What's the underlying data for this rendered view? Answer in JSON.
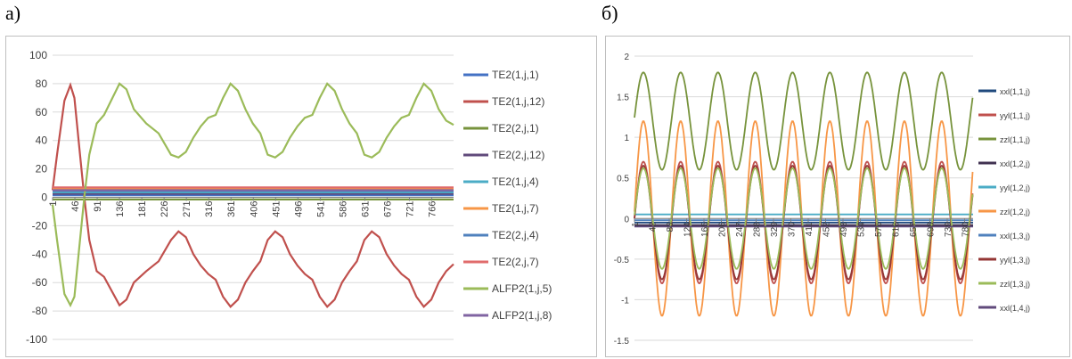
{
  "panel_labels": {
    "a": "а)",
    "b": "б)"
  },
  "chart_data": [
    {
      "type": "line",
      "title": "",
      "xlabel": "",
      "ylabel": "",
      "ylim": [
        -100,
        100
      ],
      "yticks": [
        -100,
        -80,
        -60,
        -40,
        -20,
        0,
        20,
        40,
        60,
        80,
        100
      ],
      "x_range": [
        1,
        810
      ],
      "xticks": [
        1,
        46,
        91,
        136,
        181,
        226,
        271,
        316,
        361,
        406,
        451,
        496,
        541,
        586,
        631,
        676,
        721,
        766
      ],
      "grid": true,
      "legend_position": "right",
      "series": [
        {
          "name": "TE2(1,j,1)",
          "color": "#4472c4",
          "x": [
            1,
            810
          ],
          "y": [
            1.5,
            1.5
          ]
        },
        {
          "name": "TE2(1,j,12)",
          "color": "#c0504d",
          "x": [
            1,
            10,
            25,
            37,
            45,
            55,
            65,
            75,
            90,
            105,
            136,
            150,
            165,
            190,
            215,
            240,
            255,
            270,
            285,
            300,
            315,
            330,
            345,
            360,
            375,
            390,
            405,
            420,
            435,
            450,
            465,
            480,
            495,
            510,
            525,
            540,
            555,
            570,
            585,
            600,
            615,
            630,
            645,
            660,
            675,
            690,
            705,
            720,
            735,
            750,
            765,
            780,
            795,
            810
          ],
          "y": [
            5,
            30,
            68,
            79,
            70,
            35,
            0,
            -30,
            -52,
            -56,
            -76,
            -72,
            -60,
            -52,
            -45,
            -30,
            -24,
            -28,
            -40,
            -48,
            -54,
            -58,
            -70,
            -77,
            -72,
            -60,
            -52,
            -45,
            -30,
            -24,
            -28,
            -40,
            -48,
            -54,
            -58,
            -70,
            -77,
            -72,
            -60,
            -52,
            -45,
            -30,
            -24,
            -28,
            -40,
            -48,
            -54,
            -58,
            -70,
            -77,
            -72,
            -60,
            -52,
            -47
          ]
        },
        {
          "name": "TE2(2,j,1)",
          "color": "#77933c",
          "x": [
            1,
            810
          ],
          "y": [
            -1.5,
            -1.5
          ]
        },
        {
          "name": "TE2(2,j,12)",
          "color": "#604a7b",
          "x": [
            1,
            810
          ],
          "y": [
            2.5,
            2.5
          ]
        },
        {
          "name": "TE2(1,j,4)",
          "color": "#4bacc6",
          "x": [
            1,
            810
          ],
          "y": [
            3.5,
            3.5
          ]
        },
        {
          "name": "TE2(1,j,7)",
          "color": "#f79646",
          "x": [
            1,
            810
          ],
          "y": [
            6,
            6
          ]
        },
        {
          "name": "TE2(2,j,4)",
          "color": "#4f81bd",
          "x": [
            1,
            810
          ],
          "y": [
            4.5,
            4.5
          ]
        },
        {
          "name": "TE2(2,j,7)",
          "color": "#e06b6b",
          "x": [
            1,
            810
          ],
          "y": [
            7,
            7
          ]
        },
        {
          "name": "ALFP2(1,j,5)",
          "color": "#9bbb59",
          "x": [
            1,
            10,
            25,
            37,
            45,
            55,
            65,
            75,
            90,
            105,
            136,
            150,
            165,
            190,
            215,
            240,
            255,
            270,
            285,
            300,
            315,
            330,
            345,
            360,
            375,
            390,
            405,
            420,
            435,
            450,
            465,
            480,
            495,
            510,
            525,
            540,
            555,
            570,
            585,
            600,
            615,
            630,
            645,
            660,
            675,
            690,
            705,
            720,
            735,
            750,
            765,
            780,
            795,
            810
          ],
          "y": [
            -5,
            -30,
            -68,
            -76,
            -70,
            -35,
            0,
            30,
            52,
            58,
            80,
            76,
            62,
            52,
            45,
            30,
            28,
            32,
            42,
            50,
            56,
            58,
            70,
            80,
            75,
            62,
            52,
            45,
            30,
            28,
            32,
            42,
            50,
            56,
            58,
            70,
            80,
            75,
            62,
            52,
            45,
            30,
            28,
            32,
            42,
            50,
            56,
            58,
            70,
            80,
            75,
            62,
            54,
            51
          ]
        },
        {
          "name": "ALFP2(1,j,8)",
          "color": "#8064a2",
          "x": [
            1,
            810
          ],
          "y": [
            5,
            5
          ]
        }
      ]
    },
    {
      "type": "line",
      "title": "",
      "xlabel": "",
      "ylabel": "",
      "ylim": [
        -1.5,
        2
      ],
      "yticks": [
        -1.5,
        -1,
        -0.5,
        0,
        0.5,
        1,
        1.5,
        2
      ],
      "ytick_labels": [
        "-1.5",
        "-1",
        "-0.5",
        "0",
        "0.5",
        "1",
        "1.5",
        "2"
      ],
      "x_range": [
        1,
        800
      ],
      "xticks": [
        1,
        42,
        83,
        124,
        165,
        206,
        247,
        288,
        329,
        370,
        411,
        452,
        493,
        534,
        575,
        616,
        657,
        698,
        739,
        780
      ],
      "grid": true,
      "legend_position": "right",
      "series": [
        {
          "name": "xxl(1,1,j)",
          "color": "#1f497d",
          "x": [
            1,
            800
          ],
          "y": [
            -0.05,
            -0.05
          ]
        },
        {
          "name": "yyl(1,1,j)",
          "color": "#c0504d",
          "sine": {
            "amplitude": 0.75,
            "offset": -0.05,
            "period": 88,
            "phase_x": 22
          }
        },
        {
          "name": "zzl(1,1,j)",
          "color": "#77933c",
          "sine": {
            "amplitude": 0.6,
            "offset": 1.2,
            "period": 88,
            "phase_x": 22
          }
        },
        {
          "name": "xxl(1,2,j)",
          "color": "#403151",
          "x": [
            1,
            800
          ],
          "y": [
            -0.08,
            -0.08
          ]
        },
        {
          "name": "yyl(1,2,j)",
          "color": "#4bacc6",
          "x": [
            1,
            800
          ],
          "y": [
            0.05,
            0.05
          ]
        },
        {
          "name": "zzl(1,2,j)",
          "color": "#f79646",
          "sine": {
            "amplitude": 1.2,
            "offset": 0,
            "period": 88,
            "phase_x": 22
          }
        },
        {
          "name": "xxl(1,3,j)",
          "color": "#4f81bd",
          "x": [
            1,
            800
          ],
          "y": [
            -0.02,
            -0.02
          ]
        },
        {
          "name": "yyl(1,3,j)",
          "color": "#943634",
          "sine": {
            "amplitude": 0.7,
            "offset": -0.05,
            "period": 88,
            "phase_x": 22
          }
        },
        {
          "name": "zzl(1,3,j)",
          "color": "#9bbb59",
          "sine": {
            "amplitude": 0.62,
            "offset": 0,
            "period": 88,
            "phase_x": 22
          }
        },
        {
          "name": "xxl(1,4,j)",
          "color": "#604a7b",
          "x": [
            1,
            800
          ],
          "y": [
            -0.1,
            -0.1
          ]
        }
      ]
    }
  ]
}
